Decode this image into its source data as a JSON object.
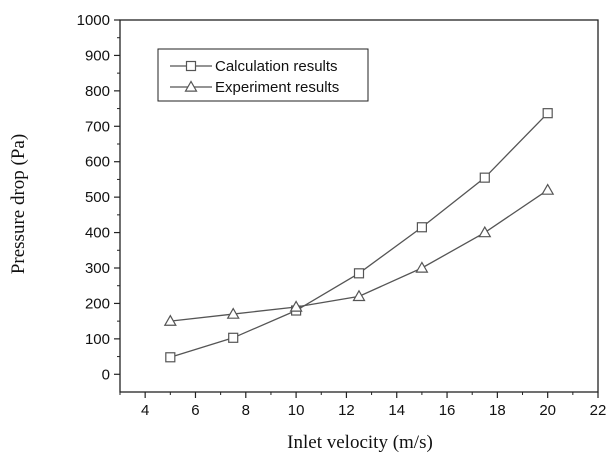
{
  "chart_data": {
    "type": "line",
    "title": "",
    "xlabel": "Inlet velocity (m/s)",
    "ylabel": "Pressure drop (Pa)",
    "xlim": [
      3,
      22
    ],
    "ylim": [
      -50,
      1000
    ],
    "xticks": [
      4,
      6,
      8,
      10,
      12,
      14,
      16,
      18,
      20,
      22
    ],
    "yticks": [
      0,
      100,
      200,
      300,
      400,
      500,
      600,
      700,
      800,
      900,
      1000
    ],
    "grid": false,
    "legend_position": "top-left",
    "series": [
      {
        "name": "Calculation results",
        "marker": "square",
        "color": "#555555",
        "x": [
          5,
          7.5,
          10,
          12.5,
          15,
          17.5,
          20
        ],
        "y": [
          48,
          103,
          180,
          285,
          415,
          555,
          737
        ]
      },
      {
        "name": "Experiment results",
        "marker": "triangle",
        "color": "#555555",
        "x": [
          5,
          7.5,
          10,
          12.5,
          15,
          17.5,
          20
        ],
        "y": [
          150,
          170,
          190,
          220,
          300,
          400,
          520
        ]
      }
    ]
  }
}
